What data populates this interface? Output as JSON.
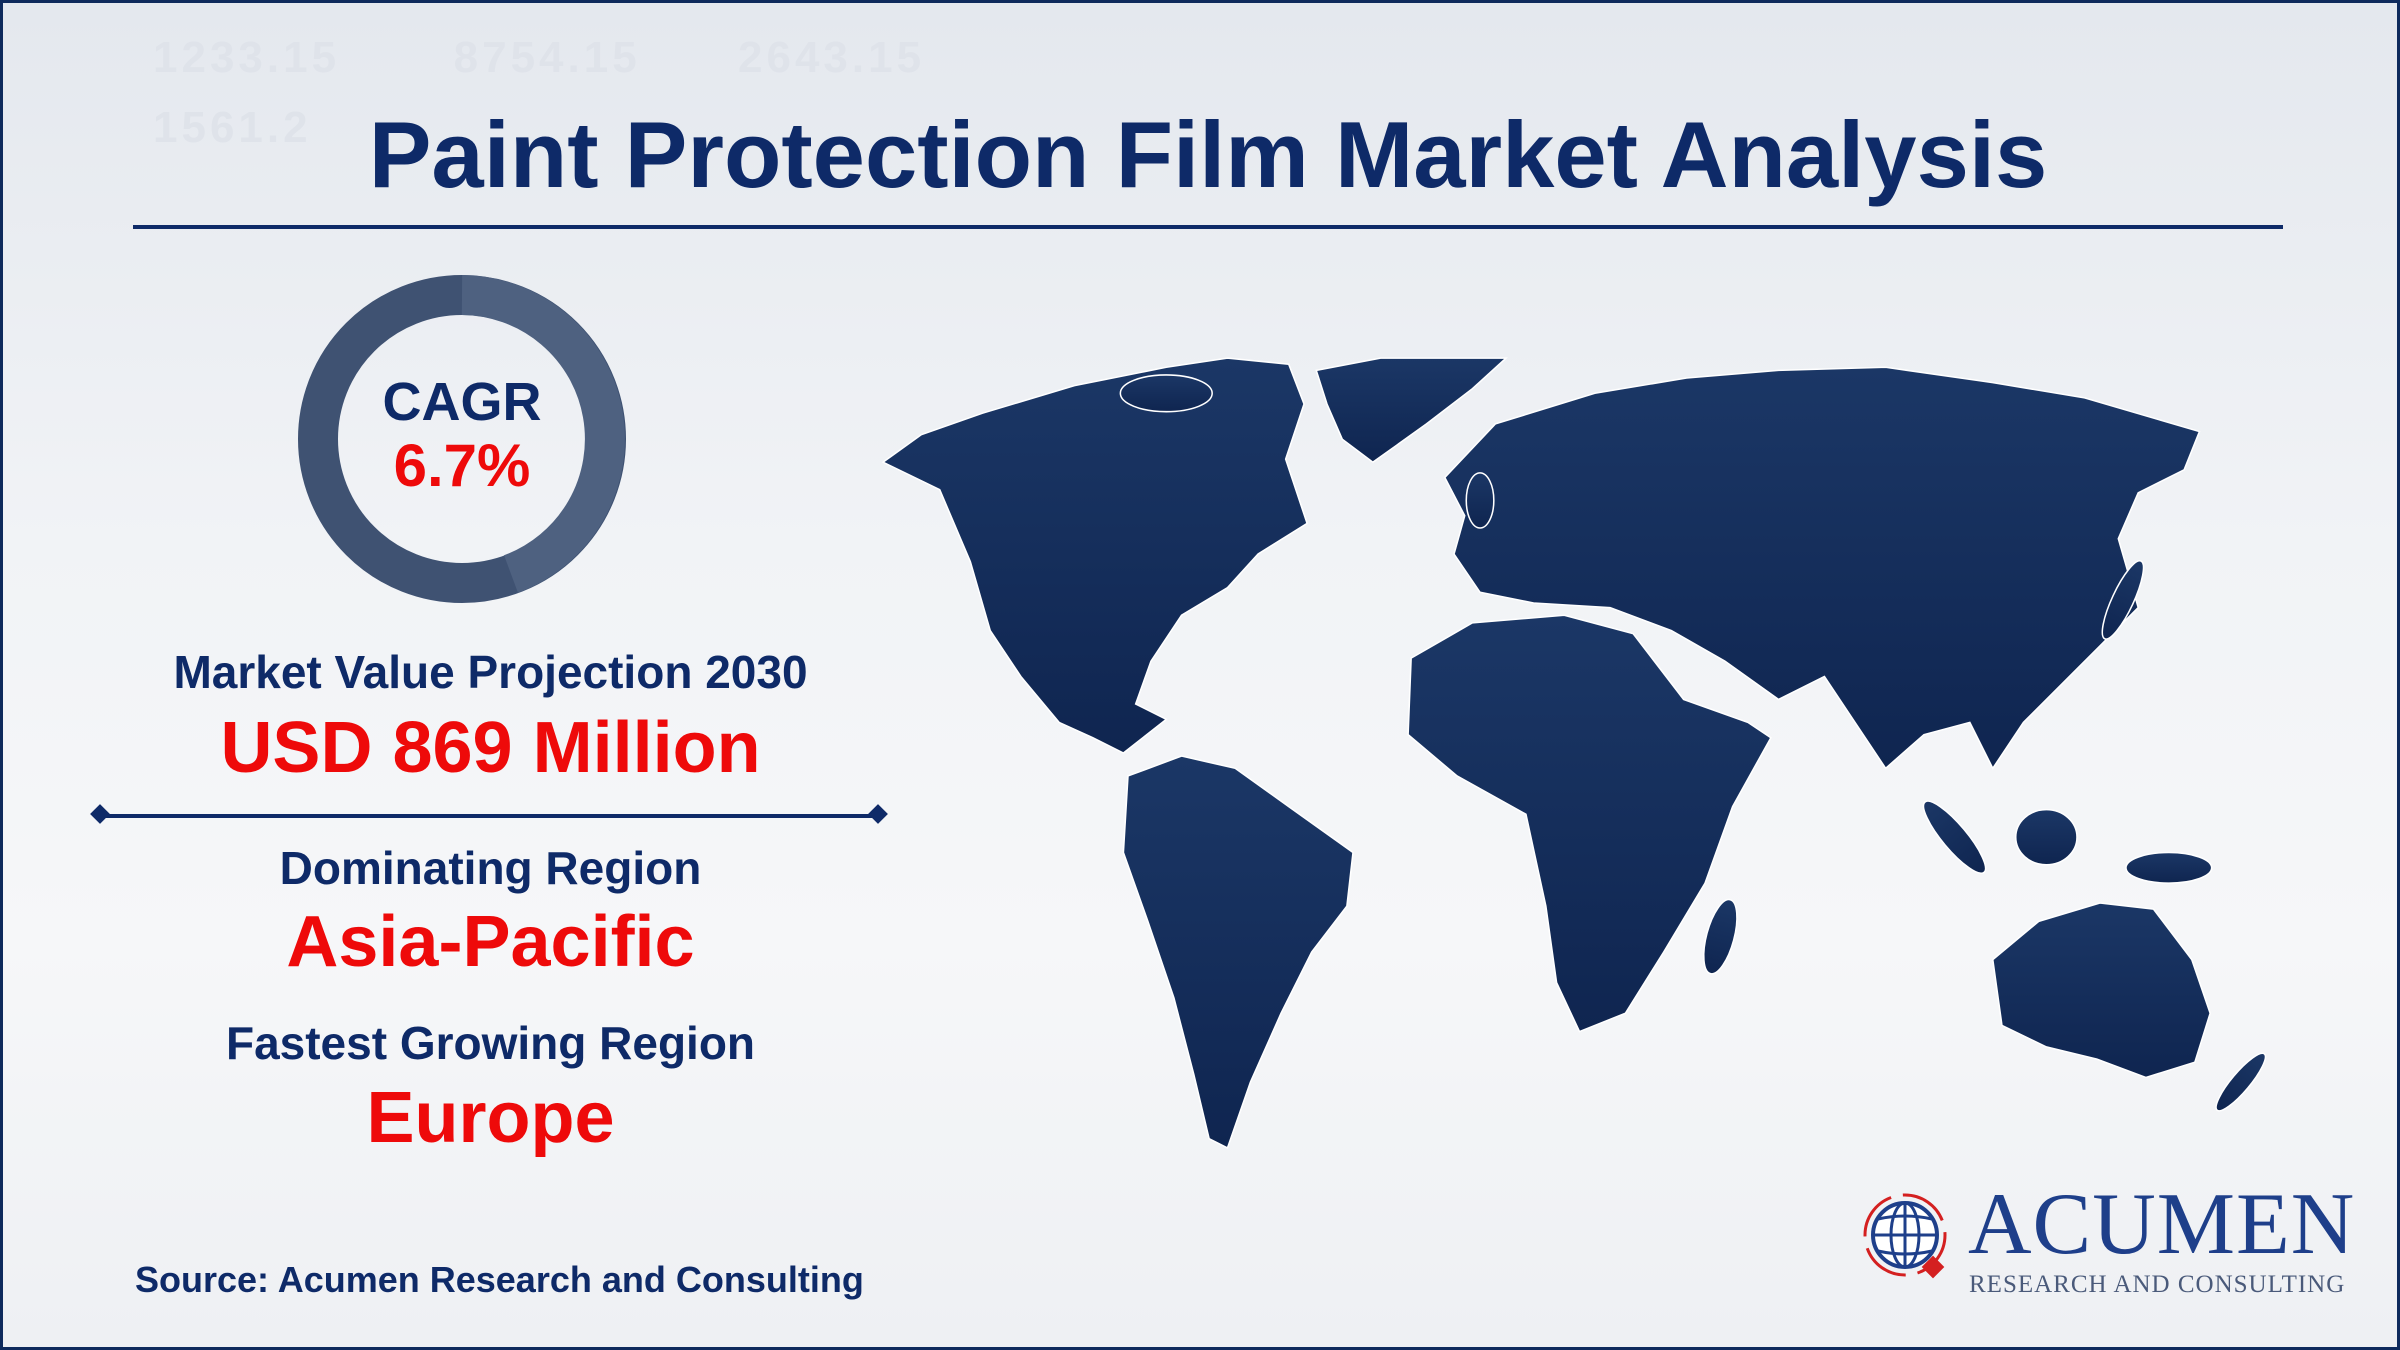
{
  "title": "Paint Protection Film Market Analysis",
  "cagr": {
    "label": "CAGR",
    "value": "6.7%"
  },
  "market_value": {
    "label": "Market Value Projection 2030",
    "value": "USD 869 Million"
  },
  "dominating_region": {
    "label": "Dominating Region",
    "value": "Asia-Pacific"
  },
  "fastest_region": {
    "label": "Fastest Growing Region",
    "value": "Europe"
  },
  "source": "Source: Acumen Research and Consulting",
  "logo": {
    "name": "ACUMEN",
    "tagline": "RESEARCH AND CONSULTING"
  },
  "colors": {
    "navy": "#0e2a68",
    "red": "#ee0a0a",
    "map": "#16315e",
    "ring": "#3f5272"
  }
}
